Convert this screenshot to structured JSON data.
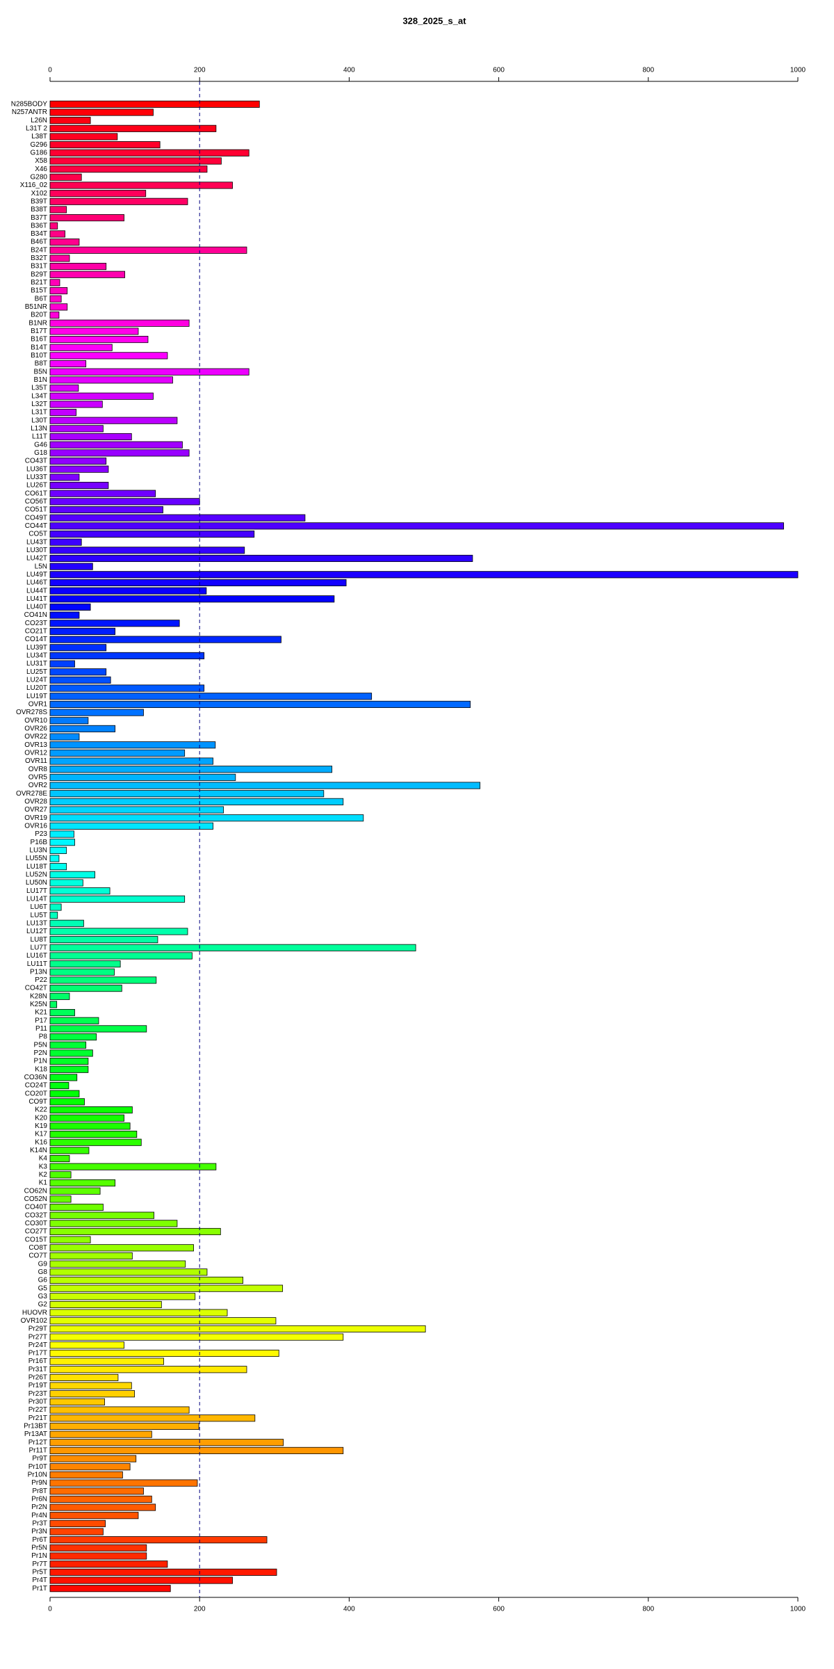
{
  "chart_data": {
    "type": "barh",
    "title": "328_2025_s_at",
    "categories": [
      "N285BODY",
      "N257ANTR",
      "L26N",
      "L31T 2",
      "L38T",
      "G296",
      "G186",
      "X58",
      "X46",
      "G280",
      "X116_02",
      "X102",
      "B39T",
      "B38T",
      "B37T",
      "B36T",
      "B34T",
      "B46T",
      "B24T",
      "B32T",
      "B31T",
      "B29T",
      "B21T",
      "B15T",
      "B6T",
      "B51NR",
      "B20T",
      "B1NR",
      "B17T",
      "B16T",
      "B14T",
      "B10T",
      "B8T",
      "B5N",
      "B1N",
      "L35T",
      "L34T",
      "L32T",
      "L31T",
      "L30T",
      "L13N",
      "L11T",
      "G46",
      "G18",
      "CO43T",
      "LU36T",
      "LU33T",
      "LU26T",
      "CO61T",
      "CO56T",
      "CO51T",
      "CO49T",
      "CO44T",
      "CO5T",
      "LU43T",
      "LU30T",
      "LU42T",
      "L5N",
      "LU49T",
      "LU46T",
      "LU44T",
      "LU41T",
      "LU40T",
      "CO41N",
      "CO23T",
      "CO21T",
      "CO14T",
      "LU39T",
      "LU34T",
      "LU31T",
      "LU25T",
      "LU24T",
      "LU20T",
      "LU19T",
      "OVR1",
      "OVR278S",
      "OVR10",
      "OVR26",
      "OVR22",
      "OVR13",
      "OVR12",
      "OVR11",
      "OVR8",
      "OVR5",
      "OVR2",
      "OVR278E",
      "OVR28",
      "OVR27",
      "OVR19",
      "OVR16",
      "P23",
      "P16B",
      "LU3N",
      "LU55N",
      "LU18T",
      "LU52N",
      "LU50N",
      "LU17T",
      "LU14T",
      "LU6T",
      "LU5T",
      "LU13T",
      "LU12T",
      "LU8T",
      "LU7T",
      "LU16T",
      "LU11T",
      "P13N",
      "P22",
      "CO42T",
      "K28N",
      "K25N",
      "K21",
      "P17",
      "P11",
      "P8",
      "P5N",
      "P2N",
      "P1N",
      "K18",
      "CO36N",
      "CO24T",
      "CO20T",
      "CO9T",
      "K22",
      "K20",
      "K19",
      "K17",
      "K16",
      "K14N",
      "K4",
      "K3",
      "K2",
      "K1",
      "CO62N",
      "CO52N",
      "CO40T",
      "CO32T",
      "CO30T",
      "CO27T",
      "CO15T",
      "CO8T",
      "CO7T",
      "G9",
      "G8",
      "G6",
      "G5",
      "G3",
      "G2",
      "HUOVR",
      "OVR102",
      "Pr29T",
      "Pr27T",
      "Pr24T",
      "Pr17T",
      "Pr16T",
      "Pr31T",
      "Pr26T",
      "Pr19T",
      "Pr23T",
      "Pr30T",
      "Pr22T",
      "Pr21T",
      "Pr13BT",
      "Pr13AT",
      "Pr12T",
      "Pr11T",
      "Pr9T",
      "Pr10T",
      "Pr10N",
      "Pr9N",
      "Pr8T",
      "Pr6N",
      "Pr2N",
      "Pr4N",
      "Pr3T",
      "Pr3N",
      "Pr6T",
      "Pr5N",
      "Pr1N",
      "Pr7T",
      "Pr5T",
      "Pr4T",
      "Pr1T"
    ],
    "values": [
      280,
      138,
      54,
      222,
      90,
      147,
      266,
      229,
      210,
      42,
      244,
      128,
      184,
      22,
      99,
      10,
      20,
      39,
      263,
      26,
      75,
      100,
      13,
      23,
      15,
      23,
      12,
      186,
      118,
      131,
      83,
      157,
      48,
      266,
      164,
      38,
      138,
      70,
      35,
      170,
      71,
      109,
      177,
      186,
      75,
      78,
      39,
      78,
      141,
      200,
      151,
      341,
      981,
      273,
      42,
      260,
      565,
      57,
      1000,
      396,
      209,
      380,
      54,
      39,
      173,
      87,
      309,
      75,
      206,
      33,
      75,
      81,
      206,
      430,
      562,
      125,
      51,
      87,
      39,
      221,
      180,
      218,
      377,
      248,
      575,
      366,
      392,
      232,
      419,
      218,
      32,
      33,
      22,
      12,
      22,
      60,
      44,
      80,
      180,
      15,
      10,
      45,
      184,
      144,
      489,
      190,
      94,
      86,
      142,
      96,
      26,
      9,
      33,
      65,
      129,
      62,
      48,
      57,
      51,
      51,
      36,
      25,
      39,
      46,
      110,
      99,
      107,
      116,
      122,
      52,
      26,
      222,
      28,
      87,
      67,
      28,
      71,
      139,
      170,
      228,
      54,
      192,
      110,
      181,
      210,
      258,
      311,
      194,
      149,
      237,
      302,
      502,
      392,
      99,
      306,
      152,
      263,
      91,
      109,
      113,
      73,
      186,
      274,
      199,
      136,
      312,
      392,
      115,
      107,
      97,
      197,
      125,
      136,
      141,
      118,
      74,
      71,
      290,
      129,
      129,
      157,
      303,
      244,
      161
    ],
    "colors": [
      "#ff0000",
      "#ff0008",
      "#ff0011",
      "#ff0019",
      "#ff0021",
      "#ff002a",
      "#ff0032",
      "#ff003a",
      "#ff0043",
      "#ff004b",
      "#ff0053",
      "#ff005b",
      "#ff0064",
      "#ff006c",
      "#ff0074",
      "#ff007d",
      "#ff0085",
      "#ff008d",
      "#ff0096",
      "#ff009e",
      "#ff00a6",
      "#ff00af",
      "#ff00b7",
      "#ff00bf",
      "#ff00c8",
      "#ff00d0",
      "#ff00d8",
      "#ff00e1",
      "#ff00e9",
      "#ff00f1",
      "#ff00f9",
      "#fc00ff",
      "#f400ff",
      "#ec00ff",
      "#e300ff",
      "#db00ff",
      "#d300ff",
      "#ca00ff",
      "#c200ff",
      "#ba00ff",
      "#b100ff",
      "#a900ff",
      "#a100ff",
      "#9800ff",
      "#9000ff",
      "#8800ff",
      "#7f00ff",
      "#7700ff",
      "#6f00ff",
      "#6700ff",
      "#5e00ff",
      "#5600ff",
      "#4e00ff",
      "#4500ff",
      "#3d00ff",
      "#3500ff",
      "#2c00ff",
      "#2400ff",
      "#1c00ff",
      "#1300ff",
      "#0b00ff",
      "#0300ff",
      "#0006ff",
      "#000eff",
      "#0016ff",
      "#001eff",
      "#0027ff",
      "#002fff",
      "#0037ff",
      "#0040ff",
      "#0048ff",
      "#0050ff",
      "#0059ff",
      "#0061ff",
      "#0069ff",
      "#0072ff",
      "#007aff",
      "#0082ff",
      "#008bff",
      "#0093ff",
      "#009bff",
      "#00a4ff",
      "#00acff",
      "#00b4ff",
      "#00bcff",
      "#00c5ff",
      "#00cdff",
      "#00d5ff",
      "#00deff",
      "#00e6ff",
      "#00eeff",
      "#00f7ff",
      "#00ffff",
      "#00fff7",
      "#00ffee",
      "#00ffe6",
      "#00ffde",
      "#00ffd5",
      "#00ffcd",
      "#00ffc5",
      "#00ffbc",
      "#00ffb4",
      "#00ffac",
      "#00ffa4",
      "#00ff9b",
      "#00ff93",
      "#00ff8b",
      "#00ff82",
      "#00ff7a",
      "#00ff72",
      "#00ff69",
      "#00ff61",
      "#00ff59",
      "#00ff50",
      "#00ff48",
      "#00ff40",
      "#00ff37",
      "#00ff2f",
      "#00ff27",
      "#00ff1e",
      "#00ff16",
      "#00ff0e",
      "#00ff06",
      "#03ff00",
      "#0bff00",
      "#13ff00",
      "#1cff00",
      "#24ff00",
      "#2cff00",
      "#35ff00",
      "#3dff00",
      "#45ff00",
      "#4eff00",
      "#56ff00",
      "#5eff00",
      "#67ff00",
      "#6fff00",
      "#77ff00",
      "#7fff00",
      "#88ff00",
      "#90ff00",
      "#98ff00",
      "#a1ff00",
      "#a9ff00",
      "#b1ff00",
      "#baff00",
      "#c2ff00",
      "#caff00",
      "#d3ff00",
      "#dbff00",
      "#e3ff00",
      "#ecff00",
      "#f4ff00",
      "#fcff00",
      "#fff900",
      "#fff100",
      "#ffe900",
      "#ffe100",
      "#ffd800",
      "#ffd000",
      "#ffc800",
      "#ffbf00",
      "#ffb700",
      "#ffaf00",
      "#ffa600",
      "#ff9e00",
      "#ff9600",
      "#ff8d00",
      "#ff8500",
      "#ff7d00",
      "#ff7400",
      "#ff6c00",
      "#ff6400",
      "#ff5b00",
      "#ff5300",
      "#ff4b00",
      "#ff4300",
      "#ff3a00",
      "#ff3200",
      "#ff2a00",
      "#ff2100",
      "#ff1900",
      "#ff1100",
      "#ff0800"
    ],
    "xlim": [
      0,
      1000
    ],
    "xticks": [
      0,
      200,
      400,
      600,
      800,
      1000
    ],
    "vline": 200
  }
}
